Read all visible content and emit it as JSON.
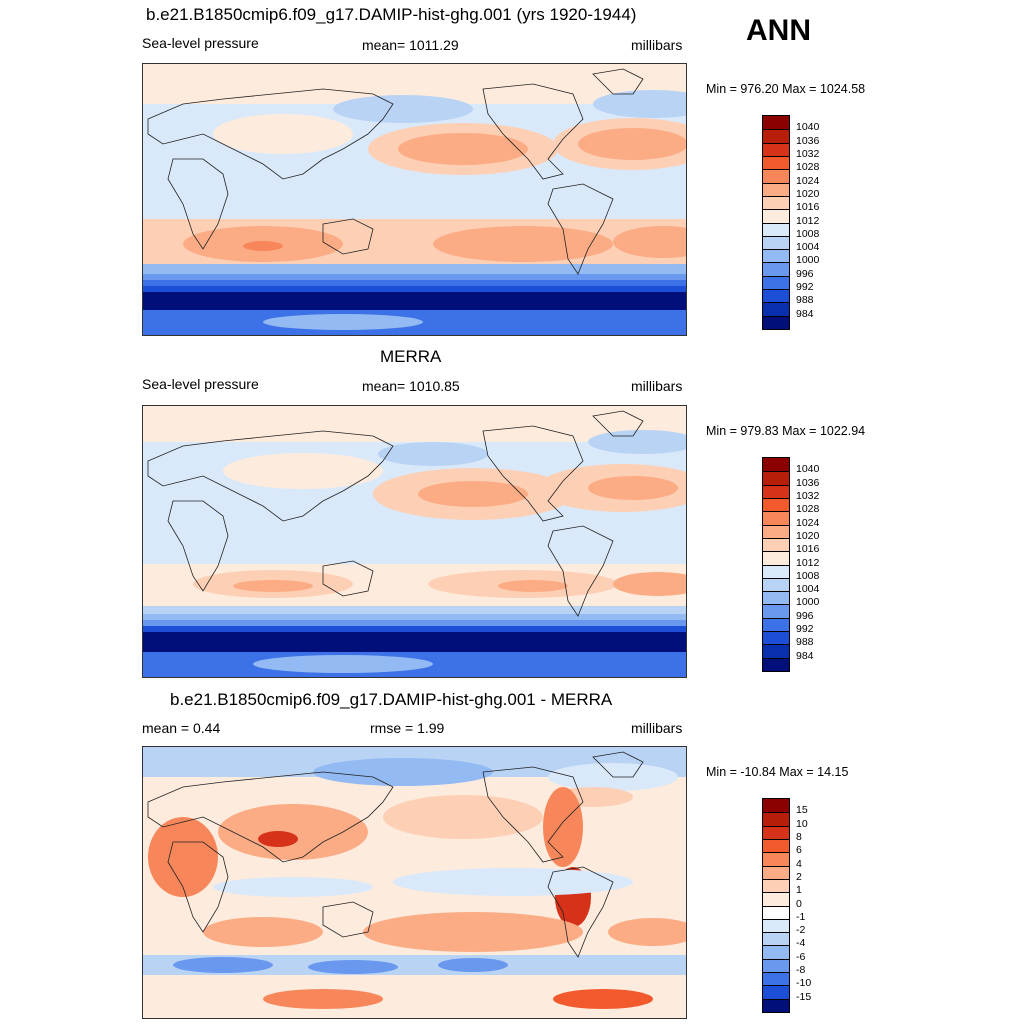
{
  "season": "ANN",
  "panels": [
    {
      "title": "b.e21.B1850cmip6.f09_g17.DAMIP-hist-ghg.001 (yrs 1920-1944)",
      "left_label": "Sea-level pressure",
      "center_label": "mean= 1011.29",
      "units": "millibars",
      "minmax": "Min = 976.20 Max = 1024.58",
      "levels": [
        "1040",
        "1036",
        "1032",
        "1028",
        "1024",
        "1020",
        "1016",
        "1012",
        "1008",
        "1004",
        "1000",
        "996",
        "992",
        "988",
        "984"
      ],
      "colors": [
        "#8b0000",
        "#b81d0a",
        "#d6321a",
        "#f25a2e",
        "#f7875a",
        "#fbac85",
        "#fdd0b6",
        "#fdebdd",
        "#dae9fa",
        "#b9d3f5",
        "#93baf2",
        "#6a98ee",
        "#3d71e8",
        "#1c4ed8",
        "#0a2fae",
        "#000f7a"
      ]
    },
    {
      "title": "MERRA",
      "left_label": "Sea-level pressure",
      "center_label": "mean= 1010.85",
      "units": "millibars",
      "minmax": "Min = 979.83 Max = 1022.94",
      "levels": [
        "1040",
        "1036",
        "1032",
        "1028",
        "1024",
        "1020",
        "1016",
        "1012",
        "1008",
        "1004",
        "1000",
        "996",
        "992",
        "988",
        "984"
      ],
      "colors": [
        "#8b0000",
        "#b81d0a",
        "#d6321a",
        "#f25a2e",
        "#f7875a",
        "#fbac85",
        "#fdd0b6",
        "#fdebdd",
        "#dae9fa",
        "#b9d3f5",
        "#93baf2",
        "#6a98ee",
        "#3d71e8",
        "#1c4ed8",
        "#0a2fae",
        "#000f7a"
      ]
    },
    {
      "title": "b.e21.B1850cmip6.f09_g17.DAMIP-hist-ghg.001 - MERRA",
      "left_label": "mean =   0.44",
      "center_label": "rmse =   1.99",
      "units": "millibars",
      "minmax": "Min = -10.84 Max =  14.15",
      "levels": [
        "15",
        "10",
        "8",
        "6",
        "4",
        "2",
        "1",
        "0",
        "-1",
        "-2",
        "-4",
        "-6",
        "-8",
        "-10",
        "-15"
      ],
      "colors": [
        "#8b0000",
        "#b81d0a",
        "#d6321a",
        "#f25a2e",
        "#f7875a",
        "#fbac85",
        "#fdd0b6",
        "#fdebdd",
        "#ffffff",
        "#dae9fa",
        "#b9d3f5",
        "#93baf2",
        "#6a98ee",
        "#3d71e8",
        "#1c4ed8",
        "#000f7a"
      ]
    }
  ],
  "chart_data": [
    {
      "type": "heatmap",
      "title": "b.e21.B1850cmip6.f09_g17.DAMIP-hist-ghg.001 (yrs 1920-1944)",
      "variable": "Sea-level pressure",
      "units": "millibars",
      "mean": 1011.29,
      "min": 976.2,
      "max": 1024.58,
      "contour_levels": [
        984,
        988,
        992,
        996,
        1000,
        1004,
        1008,
        1012,
        1016,
        1020,
        1024,
        1028,
        1032,
        1036,
        1040
      ]
    },
    {
      "type": "heatmap",
      "title": "MERRA",
      "variable": "Sea-level pressure",
      "units": "millibars",
      "mean": 1010.85,
      "min": 979.83,
      "max": 1022.94,
      "contour_levels": [
        984,
        988,
        992,
        996,
        1000,
        1004,
        1008,
        1012,
        1016,
        1020,
        1024,
        1028,
        1032,
        1036,
        1040
      ]
    },
    {
      "type": "heatmap",
      "title": "b.e21.B1850cmip6.f09_g17.DAMIP-hist-ghg.001 - MERRA",
      "units": "millibars",
      "mean": 0.44,
      "rmse": 1.99,
      "min": -10.84,
      "max": 14.15,
      "contour_levels": [
        -15,
        -10,
        -8,
        -6,
        -4,
        -2,
        -1,
        0,
        1,
        2,
        4,
        6,
        8,
        10,
        15
      ]
    }
  ]
}
